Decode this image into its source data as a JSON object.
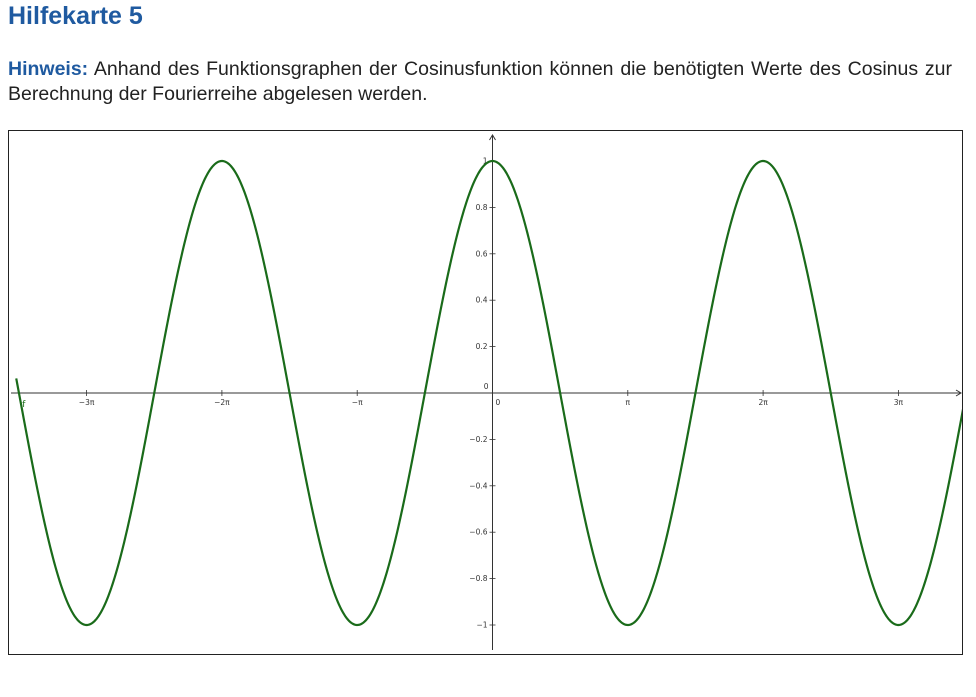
{
  "page": {
    "title": "Hilfekarte 5",
    "hint_label": "Hinweis:",
    "hint_text": " Anhand des Funktionsgraphen der Cosinusfunktion können die benötigten Werte des Cosinus zur Berechnung der Fourierreihe abgelesen werden."
  },
  "colors": {
    "heading": "#1f5aa0",
    "curve": "#1a6b1a",
    "axis": "#333333"
  },
  "chart_data": {
    "type": "line",
    "function": "cos(x)",
    "curve_label": "f",
    "xlim": [
      -3.52,
      3.52
    ],
    "xlim_unit": "pi",
    "ylim": [
      -1.1,
      1.1
    ],
    "x_ticks": [
      {
        "value": -3,
        "label": "−3π"
      },
      {
        "value": -2,
        "label": "−2π"
      },
      {
        "value": -1,
        "label": "−π"
      },
      {
        "value": 0,
        "label": "0"
      },
      {
        "value": 1,
        "label": "π"
      },
      {
        "value": 2,
        "label": "2π"
      },
      {
        "value": 3,
        "label": "3π"
      }
    ],
    "y_ticks": [
      {
        "value": 1,
        "label": "1"
      },
      {
        "value": 0.8,
        "label": "0.8"
      },
      {
        "value": 0.6,
        "label": "0.6"
      },
      {
        "value": 0.4,
        "label": "0.4"
      },
      {
        "value": 0.2,
        "label": "0.2"
      },
      {
        "value": 0,
        "label": "0"
      },
      {
        "value": -0.2,
        "label": "−0.2"
      },
      {
        "value": -0.4,
        "label": "−0.4"
      },
      {
        "value": -0.6,
        "label": "−0.6"
      },
      {
        "value": -0.8,
        "label": "−0.8"
      },
      {
        "value": -1,
        "label": "−1"
      }
    ],
    "grid": false
  }
}
